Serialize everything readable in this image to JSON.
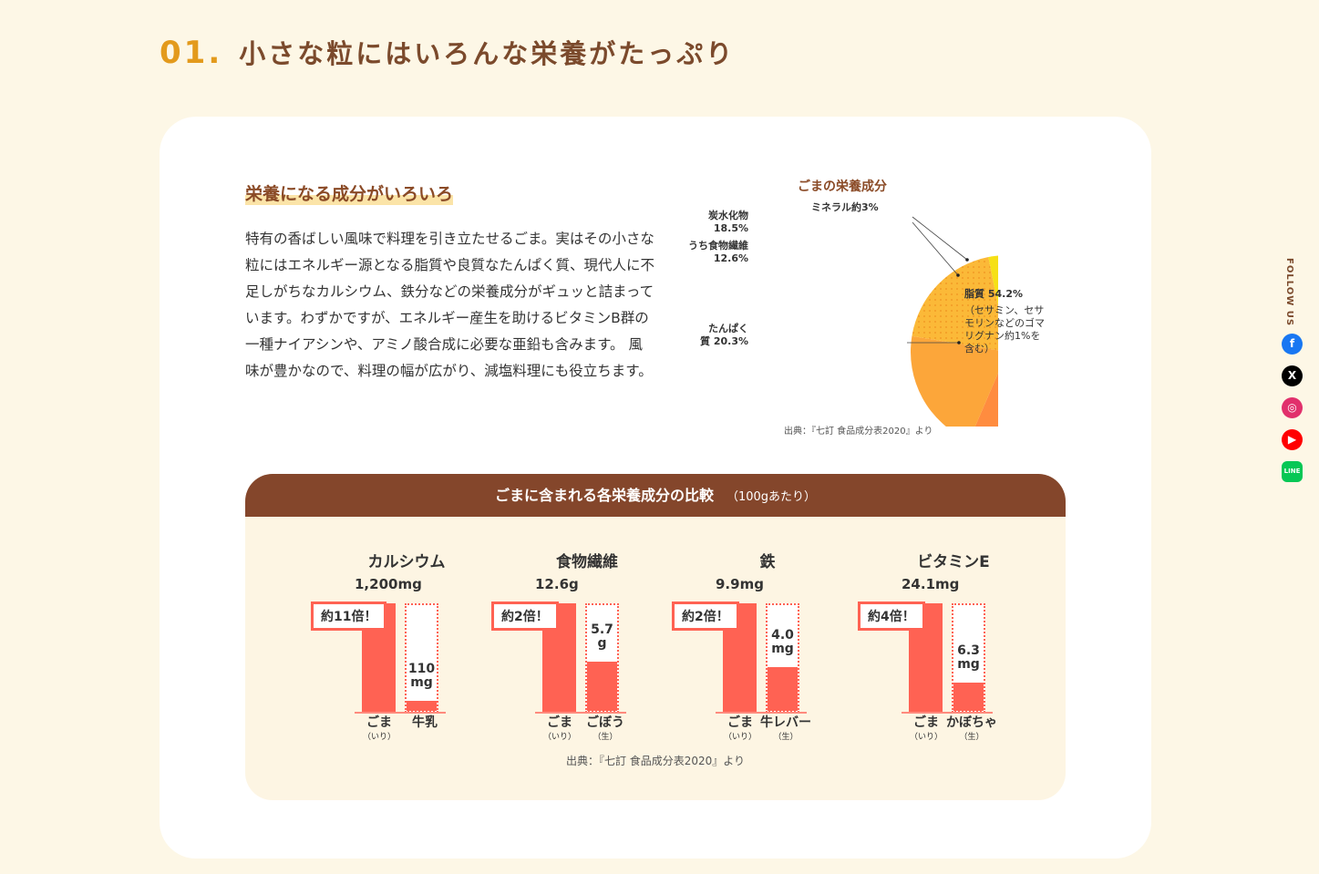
{
  "heading": {
    "number": "01.",
    "title": "小さな粒にはいろんな栄養がたっぷり"
  },
  "section": {
    "subtitle": "栄養になる成分がいろいろ",
    "body": "特有の香ばしい風味で料理を引き立たせるごま。実はその小さな粒にはエネルギー源となる脂質や良質なたんぱく質、現代人に不足しがちなカルシウム、鉄分などの栄養成分がギュッと詰まっています。わずかですが、エネルギー産生を助けるビタミンB群の一種ナイアシンや、アミノ酸合成に必要な亜鉛も含みます。 風味が豊かなので、料理の幅が広がり、減塩料理にも役立ちます。"
  },
  "chart_data": [
    {
      "type": "pie",
      "title": "ごまの栄養成分",
      "slices": [
        {
          "name": "脂質",
          "value": 54.2,
          "label": "脂質 54.2%",
          "note": "（セサミン、セサモリンなどのゴマリグナン約1%を含む）",
          "color": "#ff8c3f"
        },
        {
          "name": "たんぱく質",
          "value": 20.3,
          "label": "たんぱく質 20.3%",
          "color": "#fca63a"
        },
        {
          "name": "炭水化物",
          "value": 18.5,
          "label": "炭水化物 18.5%",
          "sub": "うち食物繊維 12.6%",
          "color": "#fbb938"
        },
        {
          "name": "ミネラル",
          "value": 3,
          "label": "ミネラル約3%",
          "color": "#f6e016"
        }
      ],
      "source": "出典：『七訂 食品成分表2020』より"
    },
    {
      "type": "bar",
      "title": "ごまに含まれる各栄養成分の比較",
      "unit_note": "（100gあたり）",
      "groups": [
        {
          "name": "カルシウム",
          "sesame": 1200,
          "sesame_label": "1,200mg",
          "other": 110,
          "other_label": [
            "110",
            "mg"
          ],
          "ratio": "約11倍！",
          "categories": [
            "ごま",
            "牛乳"
          ],
          "notes": [
            "（いり）",
            ""
          ]
        },
        {
          "name": "食物繊維",
          "sesame": 12.6,
          "sesame_label": "12.6g",
          "other": 5.7,
          "other_label": [
            "5.7",
            "g"
          ],
          "ratio": "約2倍！",
          "categories": [
            "ごま",
            "ごぼう"
          ],
          "notes": [
            "（いり）",
            "（生）"
          ]
        },
        {
          "name": "鉄",
          "sesame": 9.9,
          "sesame_label": "9.9mg",
          "other": 4.0,
          "other_label": [
            "4.0",
            "mg"
          ],
          "ratio": "約2倍！",
          "categories": [
            "ごま",
            "牛レバー"
          ],
          "notes": [
            "（いり）",
            "（生）"
          ]
        },
        {
          "name": "ビタミンE",
          "sesame": 24.1,
          "sesame_label": "24.1mg",
          "other": 6.3,
          "other_label": [
            "6.3",
            "mg"
          ],
          "ratio": "約4倍！",
          "categories": [
            "ごま",
            "かぼちゃ"
          ],
          "notes": [
            "（いり）",
            "（生）"
          ]
        }
      ],
      "source": "出典：『七訂 食品成分表2020』より"
    }
  ],
  "sidebar": {
    "follow": "FOLLOW US",
    "sns": [
      {
        "name": "facebook",
        "glyph": "f",
        "color": "#1877f2"
      },
      {
        "name": "x",
        "glyph": "X",
        "color": "#000000"
      },
      {
        "name": "instagram",
        "glyph": "◎",
        "color": "#e1306c"
      },
      {
        "name": "youtube",
        "glyph": "▶",
        "color": "#ff0000"
      },
      {
        "name": "line",
        "glyph": "LINE",
        "color": "#06c755"
      }
    ]
  }
}
